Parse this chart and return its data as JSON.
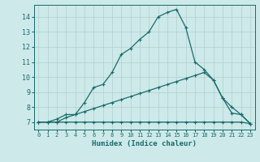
{
  "xlabel": "Humidex (Indice chaleur)",
  "bg_color": "#cde9e9",
  "line_color": "#1a6b6b",
  "grid_color": "#b0d0d0",
  "xlim": [
    -0.5,
    23.5
  ],
  "ylim": [
    6.5,
    14.8
  ],
  "xticks": [
    0,
    1,
    2,
    3,
    4,
    5,
    6,
    7,
    8,
    9,
    10,
    11,
    12,
    13,
    14,
    15,
    16,
    17,
    18,
    19,
    20,
    21,
    22,
    23
  ],
  "yticks": [
    7,
    8,
    9,
    10,
    11,
    12,
    13,
    14
  ],
  "line1_x": [
    0,
    1,
    2,
    3,
    4,
    5,
    6,
    7,
    8,
    9,
    10,
    11,
    12,
    13,
    14,
    15,
    16,
    17,
    18,
    19,
    20,
    21,
    22,
    23
  ],
  "line1_y": [
    7.0,
    7.0,
    7.0,
    7.0,
    7.0,
    7.0,
    7.0,
    7.0,
    7.0,
    7.0,
    7.0,
    7.0,
    7.0,
    7.0,
    7.0,
    7.0,
    7.0,
    7.0,
    7.0,
    7.0,
    7.0,
    7.0,
    7.0,
    6.9
  ],
  "line2_x": [
    0,
    1,
    2,
    3,
    4,
    5,
    6,
    7,
    8,
    9,
    10,
    11,
    12,
    13,
    14,
    15,
    16,
    17,
    18,
    19,
    20,
    21,
    22,
    23
  ],
  "line2_y": [
    7.0,
    7.0,
    7.0,
    7.3,
    7.5,
    7.7,
    7.9,
    8.1,
    8.3,
    8.5,
    8.7,
    8.9,
    9.1,
    9.3,
    9.5,
    9.7,
    9.9,
    10.1,
    10.3,
    9.8,
    8.6,
    8.0,
    7.5,
    6.9
  ],
  "line3_x": [
    0,
    1,
    2,
    3,
    4,
    5,
    6,
    7,
    8,
    9,
    10,
    11,
    12,
    13,
    14,
    15,
    16,
    17,
    18,
    19,
    20,
    21,
    22,
    23
  ],
  "line3_y": [
    7.0,
    7.0,
    7.2,
    7.5,
    7.5,
    8.3,
    9.3,
    9.5,
    10.3,
    11.5,
    11.9,
    12.5,
    13.0,
    14.0,
    14.3,
    14.5,
    13.3,
    11.0,
    10.5,
    9.8,
    8.6,
    7.6,
    7.5,
    6.9
  ]
}
